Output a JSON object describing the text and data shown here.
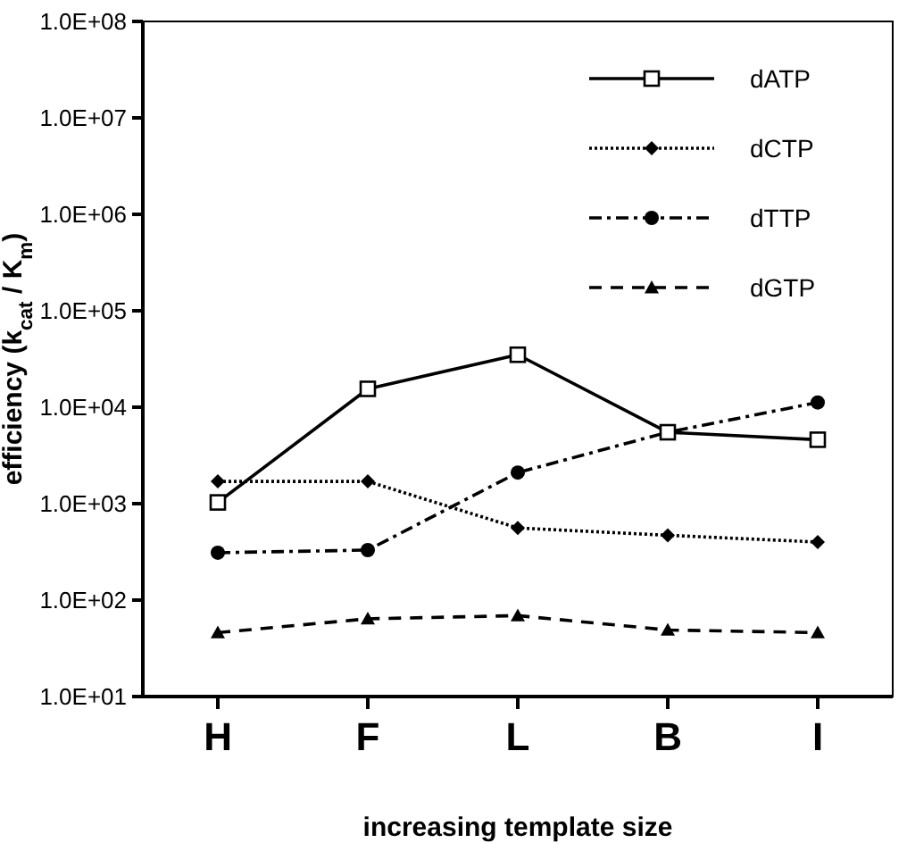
{
  "chart_data": {
    "type": "line",
    "xlabel": "increasing template size",
    "ylabel": "efficiency (k$_{cat}$ / K$_{m}$)",
    "categories": [
      "H",
      "F",
      "L",
      "B",
      "I"
    ],
    "log": "y",
    "ylim": [
      10,
      100000000
    ],
    "yticks": [
      {
        "value": 10,
        "label": "1.0E+01"
      },
      {
        "value": 100,
        "label": "1.0E+02"
      },
      {
        "value": 1000,
        "label": "1.0E+03"
      },
      {
        "value": 10000,
        "label": "1.0E+04"
      },
      {
        "value": 100000,
        "label": "1.0E+05"
      },
      {
        "value": 1000000,
        "label": "1.0E+06"
      },
      {
        "value": 10000000,
        "label": "1.0E+07"
      },
      {
        "value": 100000000,
        "label": "1.0E+08"
      }
    ],
    "grid": false,
    "legend": "top right",
    "series": [
      {
        "name": "dATP",
        "color": "#000000",
        "marker": "square",
        "line_style": "solid",
        "values": [
          1030,
          15500,
          35000,
          5500,
          4600
        ]
      },
      {
        "name": "dCTP",
        "color": "#000000",
        "marker": "diamond",
        "line_style": "dotted",
        "values": [
          1700,
          1700,
          560,
          470,
          400
        ]
      },
      {
        "name": "dTTP",
        "color": "#000000",
        "marker": "circle",
        "line_style": "dashdot",
        "values": [
          310,
          330,
          2100,
          5500,
          11200
        ]
      },
      {
        "name": "dGTP",
        "color": "#000000",
        "marker": "triangle",
        "line_style": "dashed",
        "values": [
          46,
          64,
          69,
          49,
          46
        ]
      }
    ]
  }
}
